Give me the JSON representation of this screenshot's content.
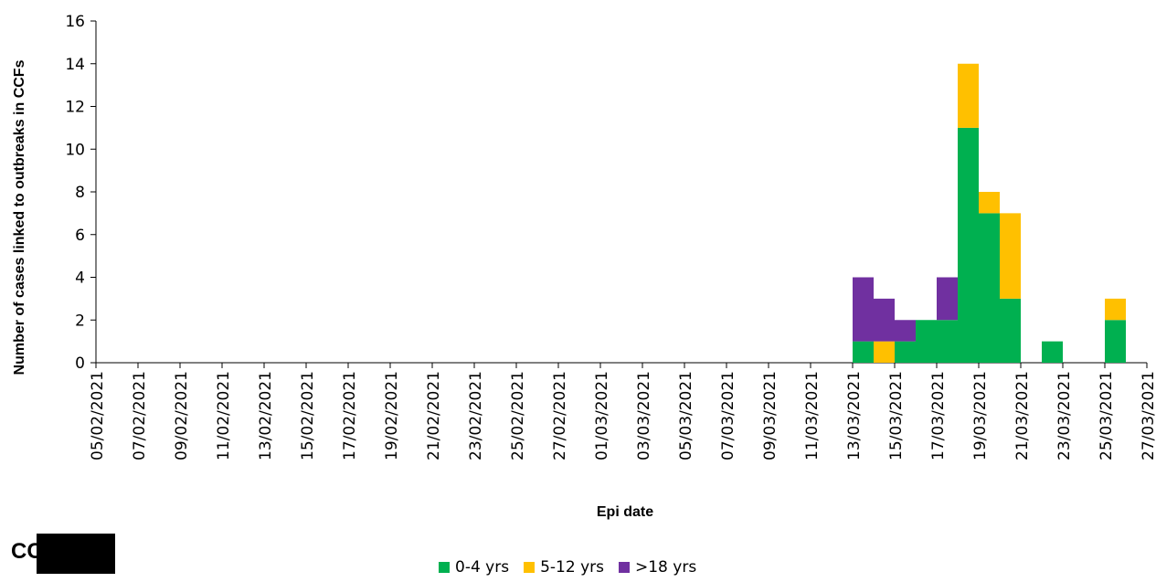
{
  "chart_data": {
    "type": "bar",
    "stacked": true,
    "title": "",
    "xlabel": "Epi date",
    "ylabel": "Number of cases linked to outbreaks in CCFs",
    "ylim": [
      0,
      16
    ],
    "yticks": [
      0,
      2,
      4,
      6,
      8,
      10,
      12,
      14,
      16
    ],
    "xlim": [
      "05/02/2021",
      "27/03/2021"
    ],
    "xtick_labels": [
      "05/02/2021",
      "07/02/2021",
      "09/02/2021",
      "11/02/2021",
      "13/02/2021",
      "15/02/2021",
      "17/02/2021",
      "19/02/2021",
      "21/02/2021",
      "23/02/2021",
      "25/02/2021",
      "27/02/2021",
      "01/03/2021",
      "03/03/2021",
      "05/03/2021",
      "07/03/2021",
      "09/03/2021",
      "11/03/2021",
      "13/03/2021",
      "15/03/2021",
      "17/03/2021",
      "19/03/2021",
      "21/03/2021",
      "23/03/2021",
      "25/03/2021",
      "27/03/2021"
    ],
    "categories": [
      "14/03/2021",
      "15/03/2021",
      "16/03/2021",
      "17/03/2021",
      "18/03/2021",
      "19/03/2021",
      "20/03/2021",
      "21/03/2021",
      "22/03/2021",
      "23/03/2021",
      "24/03/2021",
      "25/03/2021",
      "26/03/2021"
    ],
    "series": [
      {
        "name": "0-4 yrs",
        "color": "#00b050",
        "values": [
          1,
          0,
          1,
          2,
          2,
          11,
          7,
          3,
          0,
          1,
          0,
          0,
          2
        ]
      },
      {
        "name": "5-12 yrs",
        "color": "#ffc000",
        "values": [
          0,
          1,
          0,
          0,
          0,
          3,
          1,
          4,
          0,
          0,
          0,
          0,
          1
        ]
      },
      {
        "name": ">18 yrs",
        "color": "#7030a0",
        "values": [
          3,
          2,
          1,
          0,
          2,
          0,
          0,
          0,
          0,
          0,
          0,
          0,
          0
        ]
      }
    ],
    "grid": false,
    "legend_position": "bottom"
  },
  "caption": "CC"
}
